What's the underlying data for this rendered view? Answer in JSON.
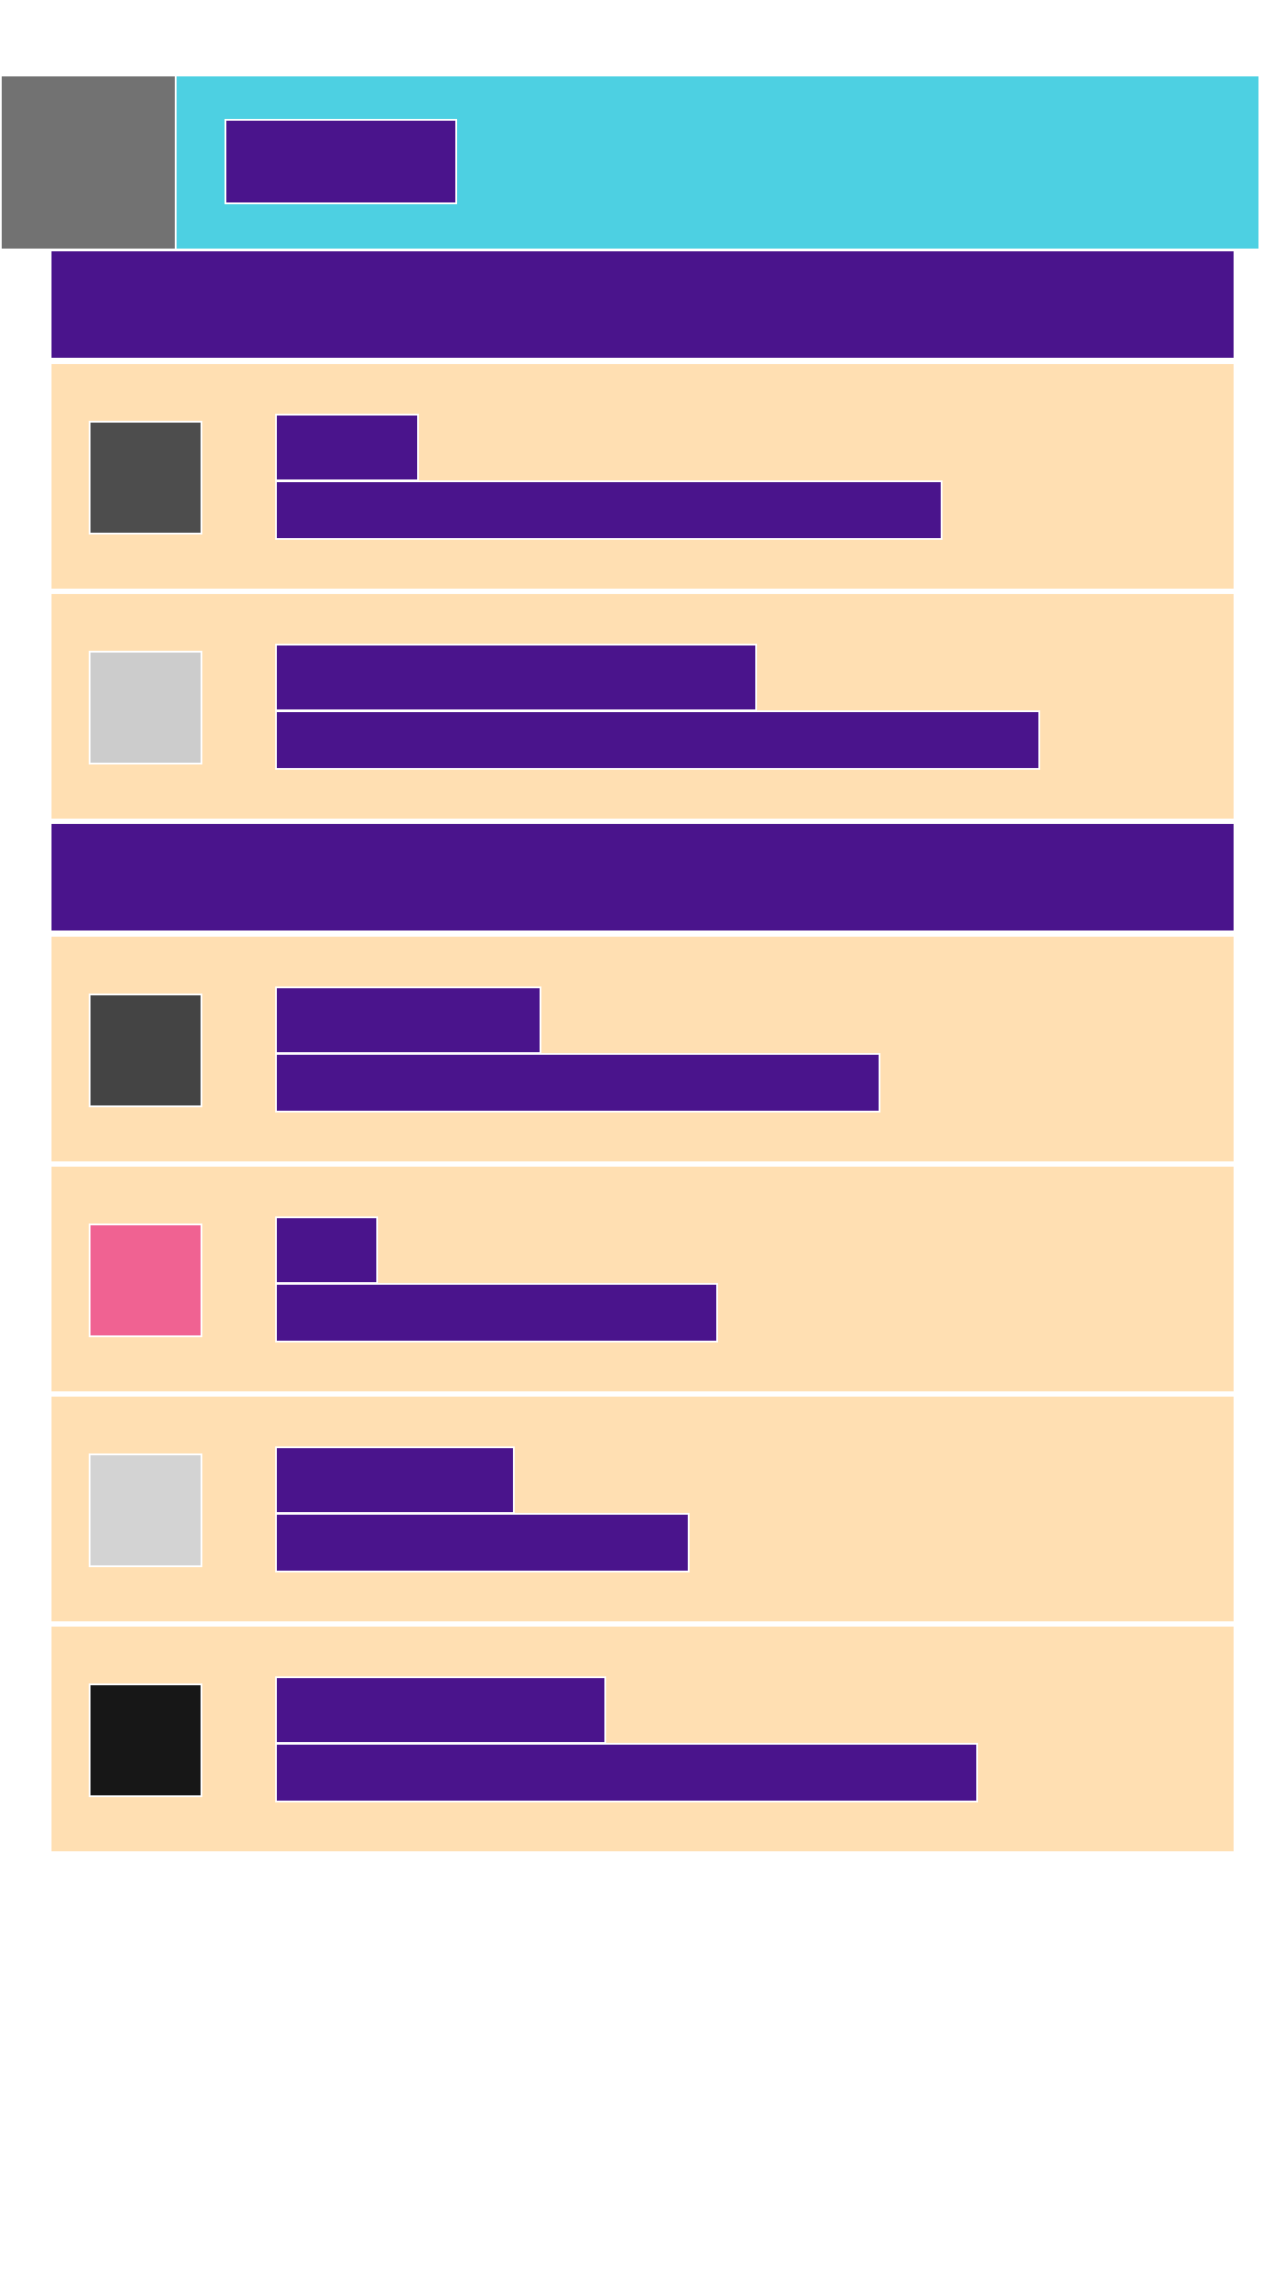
{
  "header": {
    "title": "",
    "back_color": "#727272",
    "bar_color": "#4dd0e2"
  },
  "theme": {
    "primary": "#4a148c",
    "item_background": "#ffdfb2",
    "divider": "#ffffff"
  },
  "sections": [
    {
      "title": "",
      "items": [
        {
          "primary": "",
          "secondary": "",
          "avatar_color": "#4d4d4d"
        },
        {
          "primary": "",
          "secondary": "",
          "avatar_color": "#cccccc"
        }
      ]
    },
    {
      "title": "",
      "items": [
        {
          "primary": "",
          "secondary": "",
          "avatar_color": "#444444"
        },
        {
          "primary": "",
          "secondary": "",
          "avatar_color": "#f06292"
        },
        {
          "primary": "",
          "secondary": "",
          "avatar_color": "#d3d3d3"
        },
        {
          "primary": "",
          "secondary": "",
          "avatar_color": "#171717"
        }
      ]
    }
  ]
}
